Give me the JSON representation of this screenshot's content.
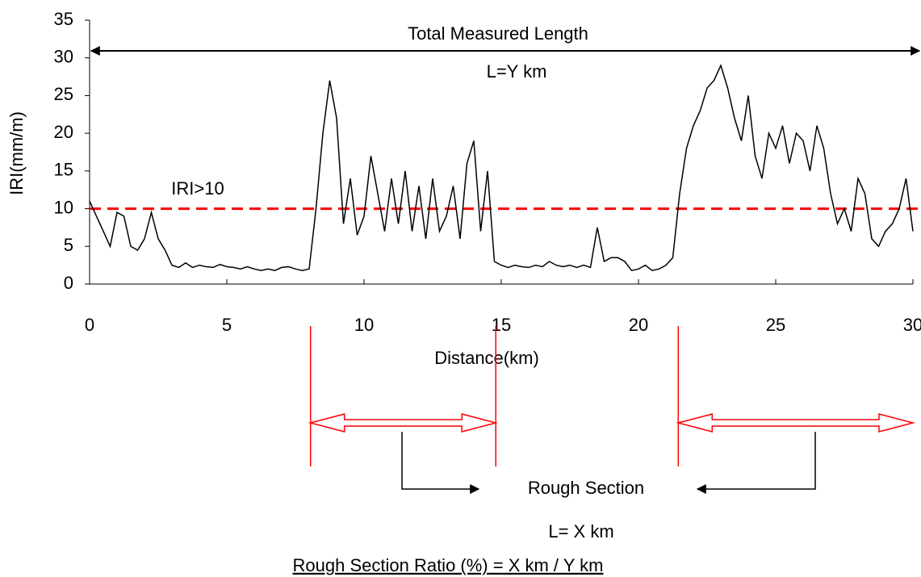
{
  "chart_data": {
    "type": "line",
    "x_label": "Distance(km)",
    "y_label": "IRI(mm/m)",
    "x": [
      0,
      0.25,
      0.5,
      0.75,
      1,
      1.25,
      1.5,
      1.75,
      2,
      2.25,
      2.5,
      2.75,
      3,
      3.25,
      3.5,
      3.75,
      4,
      4.25,
      4.5,
      4.75,
      5,
      5.25,
      5.5,
      5.75,
      6,
      6.25,
      6.5,
      6.75,
      7,
      7.25,
      7.5,
      7.75,
      8,
      8.25,
      8.5,
      8.75,
      9,
      9.25,
      9.5,
      9.75,
      10,
      10.25,
      10.5,
      10.75,
      11,
      11.25,
      11.5,
      11.75,
      12,
      12.25,
      12.5,
      12.75,
      13,
      13.25,
      13.5,
      13.75,
      14,
      14.25,
      14.5,
      14.75,
      15,
      15.25,
      15.5,
      15.75,
      16,
      16.25,
      16.5,
      16.75,
      17,
      17.25,
      17.5,
      17.75,
      18,
      18.25,
      18.5,
      18.75,
      19,
      19.25,
      19.5,
      19.75,
      20,
      20.25,
      20.5,
      20.75,
      21,
      21.25,
      21.5,
      21.75,
      22,
      22.25,
      22.5,
      22.75,
      23,
      23.25,
      23.5,
      23.75,
      24,
      24.25,
      24.5,
      24.75,
      25,
      25.25,
      25.5,
      25.75,
      26,
      26.25,
      26.5,
      26.75,
      27,
      27.25,
      27.5,
      27.75,
      28,
      28.25,
      28.5,
      28.75,
      29,
      29.25,
      29.5,
      29.75,
      30
    ],
    "series": [
      {
        "color": "#000000",
        "values": [
          11,
          9,
          7,
          5,
          9.5,
          9,
          5,
          4.5,
          6,
          9.5,
          6,
          4.5,
          2.5,
          2.2,
          2.8,
          2.2,
          2.5,
          2.3,
          2.2,
          2.6,
          2.3,
          2.2,
          2.0,
          2.3,
          2.0,
          1.8,
          2.0,
          1.8,
          2.2,
          2.3,
          2.0,
          1.8,
          2.0,
          10,
          20,
          27,
          22,
          8,
          14,
          6.5,
          9,
          17,
          12,
          7,
          14,
          8,
          15,
          7,
          13,
          6,
          14,
          7,
          9,
          13,
          6,
          16,
          19,
          7,
          15,
          3,
          2.5,
          2.2,
          2.5,
          2.3,
          2.2,
          2.5,
          2.3,
          3,
          2.5,
          2.3,
          2.5,
          2.2,
          2.5,
          2.2,
          7.5,
          3,
          3.5,
          3.5,
          3,
          1.8,
          2,
          2.5,
          1.8,
          2,
          2.5,
          3.5,
          12,
          18,
          21,
          23,
          26,
          27,
          29,
          26,
          22,
          19,
          25,
          17,
          14,
          20,
          18,
          21,
          16,
          20,
          19,
          15,
          21,
          18,
          12,
          8,
          10,
          7,
          14,
          12,
          6,
          5,
          7,
          8,
          10,
          14,
          7
        ]
      }
    ],
    "xlim": [
      0,
      30
    ],
    "xticks": [
      0,
      5,
      10,
      15,
      20,
      25,
      30
    ],
    "ylim": [
      0,
      35
    ],
    "yticks": [
      0,
      5,
      10,
      15,
      20,
      25,
      30,
      35
    ],
    "threshold": {
      "value": 10,
      "label": "IRI>10",
      "color": "#ff0000"
    },
    "rough_sections": [
      {
        "start": 8.05,
        "end": 14.8
      },
      {
        "start": 21.45,
        "end": 30
      }
    ],
    "section_color": "#ff0000",
    "annotations": {
      "total_length": "Total Measured Length",
      "total_value": "L=Y km",
      "rough_section": "Rough Section",
      "rough_value": "L= X km",
      "ratio": "Rough Section Ratio (%) = X km / Y km"
    }
  }
}
